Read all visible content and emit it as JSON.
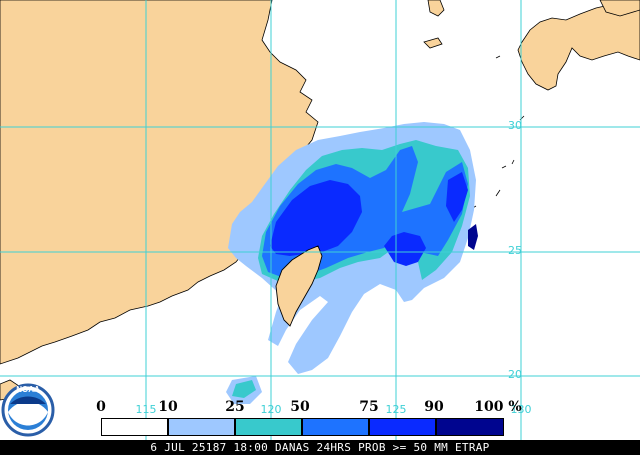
{
  "map": {
    "colors": {
      "land": "#f9d39b",
      "ocean": "#ffffff",
      "grid": "#3fd0d6",
      "coast": "#000000",
      "prob_10_25": "#9ec8ff",
      "prob_25_50": "#38c9cc",
      "prob_50_75": "#1e73ff",
      "prob_75_90": "#0a2aff",
      "prob_90_100": "#00058f"
    },
    "latitude_labels": [
      "30",
      "25",
      "20"
    ],
    "longitude_labels": [
      "115",
      "120",
      "125",
      "130"
    ]
  },
  "legend": {
    "scale_labels": [
      "0",
      "10",
      "25",
      "50",
      "75",
      "90",
      "100 %"
    ],
    "swatch_colors": [
      "#ffffff",
      "#9ec8ff",
      "#38c9cc",
      "#1e73ff",
      "#0a2aff",
      "#00058f"
    ]
  },
  "logo": {
    "text": "NOAA"
  },
  "caption": "6 JUL 25187 18:00 DANAS 24HRS PROB >= 50 MM ETRAP"
}
